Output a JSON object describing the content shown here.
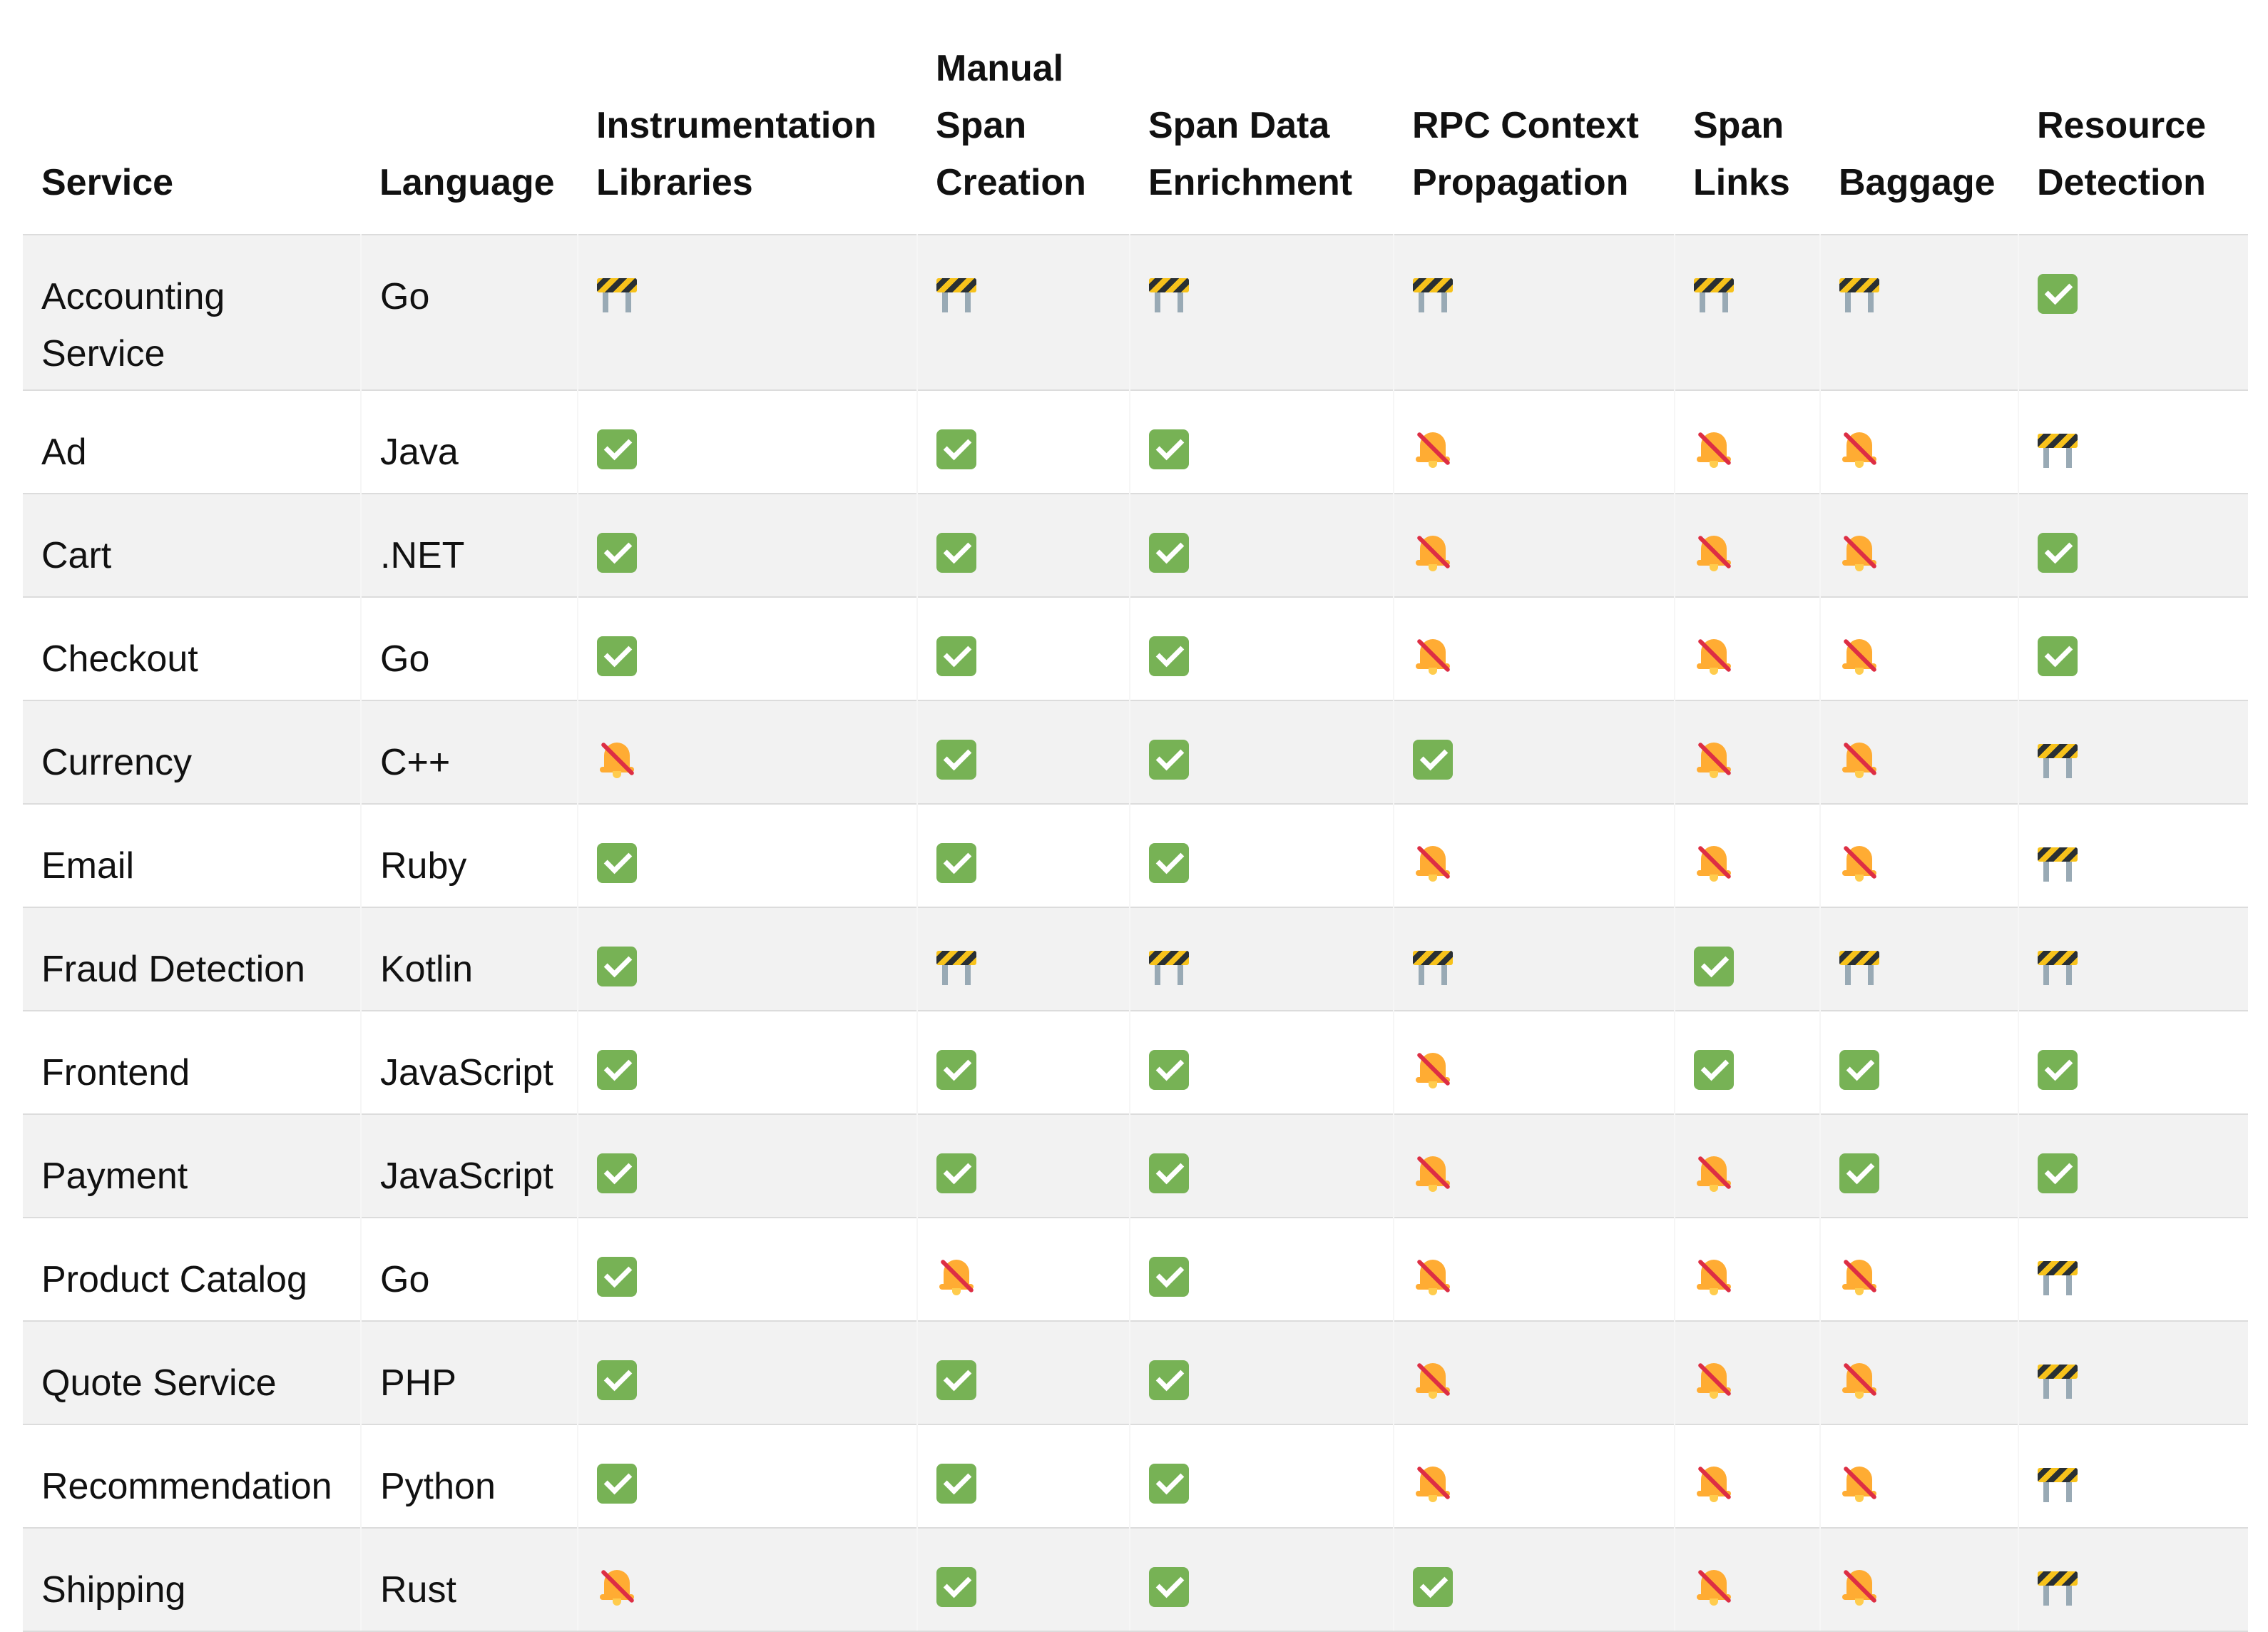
{
  "headers": [
    {
      "label": "Service"
    },
    {
      "label": "Language"
    },
    {
      "label": "Instrumentation Libraries"
    },
    {
      "label": "Manual Span Creation"
    },
    {
      "label": "Span Data Enrichment"
    },
    {
      "label": "RPC Context Propagation"
    },
    {
      "label": "Span Links"
    },
    {
      "label": "Baggage"
    },
    {
      "label": "Resource Detection"
    }
  ],
  "legend": {
    "check": "white-heavy-check-mark-icon",
    "wip": "construction-barrier-icon",
    "mute": "bell-with-slash-icon"
  },
  "colors": {
    "check_green": "#77b255",
    "barrier_yellow": "#f7c21b",
    "bell_orange": "#ffac33",
    "slash_red": "#dd2e44",
    "row_stripe": "#f2f2f2"
  },
  "rows": [
    {
      "service": "Accounting Service",
      "language": "Go",
      "status": [
        "wip",
        "wip",
        "wip",
        "wip",
        "wip",
        "wip",
        "check"
      ]
    },
    {
      "service": "Ad",
      "language": "Java",
      "status": [
        "check",
        "check",
        "check",
        "mute",
        "mute",
        "mute",
        "wip"
      ]
    },
    {
      "service": "Cart",
      "language": ".NET",
      "status": [
        "check",
        "check",
        "check",
        "mute",
        "mute",
        "mute",
        "check"
      ]
    },
    {
      "service": "Checkout",
      "language": "Go",
      "status": [
        "check",
        "check",
        "check",
        "mute",
        "mute",
        "mute",
        "check"
      ]
    },
    {
      "service": "Currency",
      "language": "C++",
      "status": [
        "mute",
        "check",
        "check",
        "check",
        "mute",
        "mute",
        "wip"
      ]
    },
    {
      "service": "Email",
      "language": "Ruby",
      "status": [
        "check",
        "check",
        "check",
        "mute",
        "mute",
        "mute",
        "wip"
      ]
    },
    {
      "service": "Fraud Detection",
      "language": "Kotlin",
      "status": [
        "check",
        "wip",
        "wip",
        "wip",
        "check",
        "wip",
        "wip"
      ]
    },
    {
      "service": "Frontend",
      "language": "JavaScript",
      "status": [
        "check",
        "check",
        "check",
        "mute",
        "check",
        "check",
        "check"
      ]
    },
    {
      "service": "Payment",
      "language": "JavaScript",
      "status": [
        "check",
        "check",
        "check",
        "mute",
        "mute",
        "check",
        "check"
      ]
    },
    {
      "service": "Product Catalog",
      "language": "Go",
      "status": [
        "check",
        "mute",
        "check",
        "mute",
        "mute",
        "mute",
        "wip"
      ]
    },
    {
      "service": "Quote Service",
      "language": "PHP",
      "status": [
        "check",
        "check",
        "check",
        "mute",
        "mute",
        "mute",
        "wip"
      ]
    },
    {
      "service": "Recommendation",
      "language": "Python",
      "status": [
        "check",
        "check",
        "check",
        "mute",
        "mute",
        "mute",
        "wip"
      ]
    },
    {
      "service": "Shipping",
      "language": "Rust",
      "status": [
        "mute",
        "check",
        "check",
        "check",
        "mute",
        "mute",
        "wip"
      ]
    }
  ]
}
